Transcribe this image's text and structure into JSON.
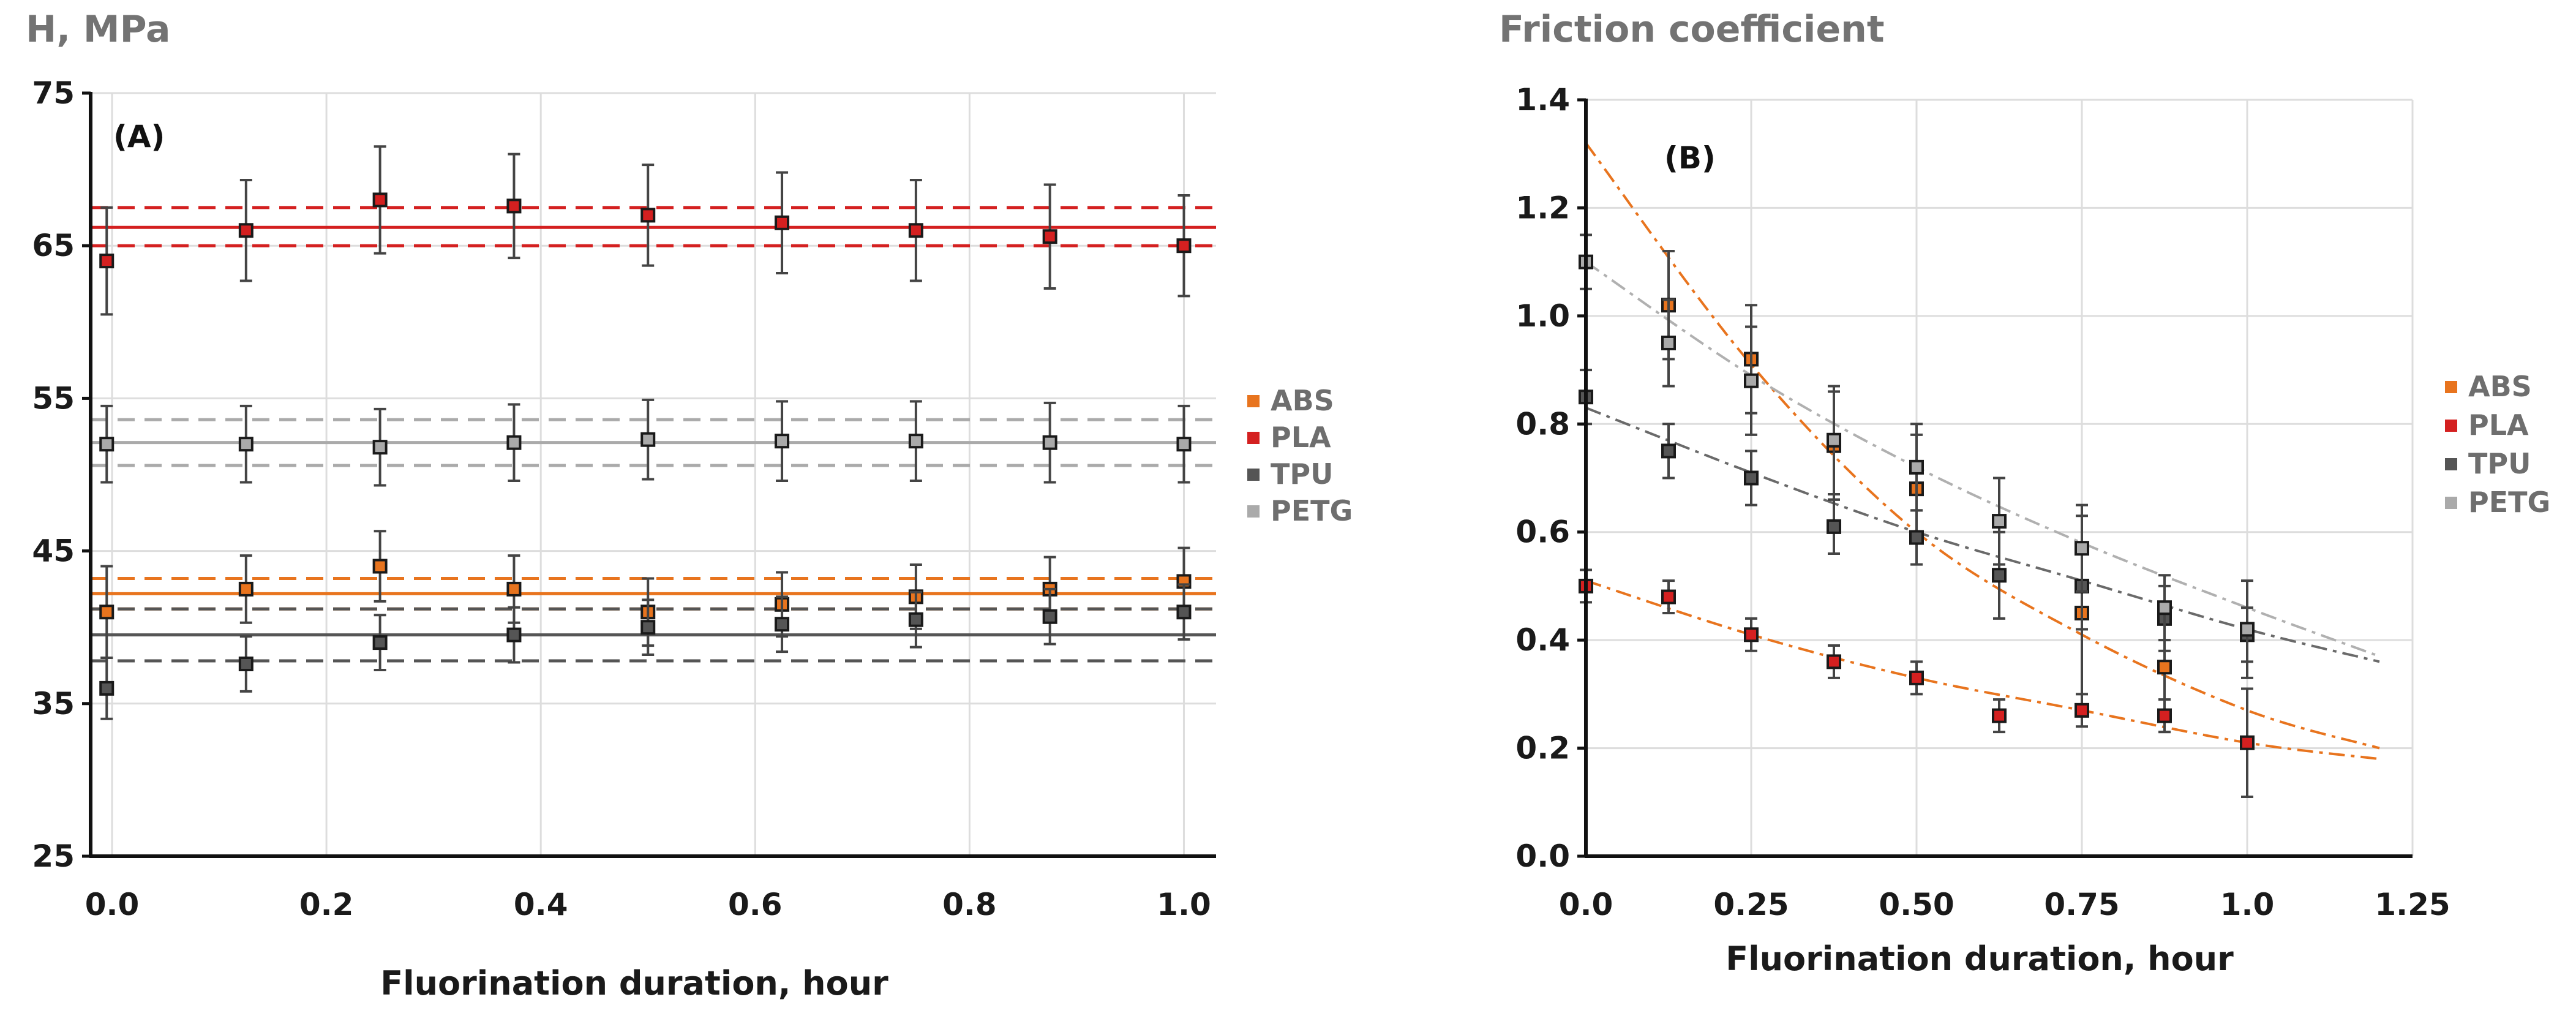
{
  "chart_data": [
    {
      "type": "scatter",
      "panel_label": "(A)",
      "ylabel": "H, MPa",
      "xlabel": "Fluorination duration, hour",
      "xlim": [
        -0.02,
        1.03
      ],
      "ylim": [
        25,
        75
      ],
      "xticks": [
        0.0,
        0.2,
        0.4,
        0.6,
        0.8,
        1.0
      ],
      "xtick_labels": [
        "0.0",
        "0.2",
        "0.4",
        "0.6",
        "0.8",
        "1.0"
      ],
      "yticks": [
        25,
        35,
        45,
        55,
        65,
        75
      ],
      "ytick_labels": [
        "25",
        "35",
        "45",
        "55",
        "65",
        "75"
      ],
      "grid": true,
      "legend_position": "right",
      "legend": [
        "ABS",
        "PLA",
        "TPU",
        "PETG"
      ],
      "x": [
        -0.005,
        0.125,
        0.25,
        0.375,
        0.5,
        0.625,
        0.75,
        0.875,
        1.0
      ],
      "series": [
        {
          "name": "ABS",
          "color": "#e8741e",
          "values": [
            41,
            42.5,
            44,
            42.5,
            41,
            41.5,
            42,
            42.5,
            43
          ],
          "err": [
            3,
            2.2,
            2.3,
            2.2,
            2.2,
            2.1,
            2.1,
            2.1,
            2.2
          ],
          "mean": 42.2,
          "band": [
            41.2,
            43.2
          ]
        },
        {
          "name": "PLA",
          "color": "#d42020",
          "values": [
            64,
            66,
            68,
            67.6,
            67,
            66.5,
            66,
            65.6,
            65
          ],
          "err": [
            3.5,
            3.3,
            3.5,
            3.4,
            3.3,
            3.3,
            3.3,
            3.4,
            3.3
          ],
          "mean": 66.2,
          "band": [
            65,
            67.5
          ]
        },
        {
          "name": "TPU",
          "color": "#555555",
          "values": [
            36,
            37.6,
            39,
            39.5,
            40,
            40.2,
            40.5,
            40.7,
            41
          ],
          "err": [
            2,
            1.8,
            1.8,
            1.8,
            1.8,
            1.8,
            1.8,
            1.8,
            1.8
          ],
          "mean": 39.5,
          "band": [
            37.8,
            41.2
          ]
        },
        {
          "name": "PETG",
          "color": "#aaaaaa",
          "values": [
            52,
            52,
            51.8,
            52.1,
            52.3,
            52.2,
            52.2,
            52.1,
            52
          ],
          "err": [
            2.5,
            2.5,
            2.5,
            2.5,
            2.6,
            2.6,
            2.6,
            2.6,
            2.5
          ],
          "mean": 52.1,
          "band": [
            50.6,
            53.6
          ]
        }
      ]
    },
    {
      "type": "scatter",
      "panel_label": "(B)",
      "ylabel": "Friction coefficient",
      "xlabel": "Fluorination duration, hour",
      "xlim": [
        0,
        1.25
      ],
      "ylim": [
        0,
        1.4
      ],
      "xticks": [
        0,
        0.25,
        0.5,
        0.75,
        1.0,
        1.25
      ],
      "xtick_labels": [
        "0.0",
        "0.25",
        "0.50",
        "0.75",
        "1.0",
        "1.25"
      ],
      "yticks": [
        0,
        0.2,
        0.4,
        0.6,
        0.8,
        1.0,
        1.2,
        1.4
      ],
      "ytick_labels": [
        "0.0",
        "0.2",
        "0.4",
        "0.6",
        "0.8",
        "1.0",
        "1.2",
        "1.4"
      ],
      "grid": true,
      "legend_position": "right",
      "legend": [
        "ABS",
        "PLA",
        "TPU",
        "PETG"
      ],
      "series": [
        {
          "name": "ABS",
          "color": "#e8741e",
          "x": [
            0.125,
            0.25,
            0.375,
            0.5,
            0.75,
            0.875
          ],
          "values": [
            1.02,
            0.92,
            0.76,
            0.68,
            0.45,
            0.35
          ],
          "err": [
            0.1,
            0.1,
            0.1,
            0.1,
            0.18,
            0.12
          ]
        },
        {
          "name": "PLA",
          "color": "#d42020",
          "x": [
            0.0,
            0.125,
            0.25,
            0.375,
            0.5,
            0.625,
            0.75,
            0.875,
            1.0
          ],
          "values": [
            0.5,
            0.48,
            0.41,
            0.36,
            0.33,
            0.26,
            0.27,
            0.26,
            0.21
          ],
          "err": [
            0.03,
            0.03,
            0.03,
            0.03,
            0.03,
            0.03,
            0.03,
            0.03,
            0.1
          ]
        },
        {
          "name": "TPU",
          "color": "#555555",
          "x": [
            0.0,
            0.125,
            0.25,
            0.375,
            0.5,
            0.625,
            0.75,
            0.875,
            1.0
          ],
          "values": [
            0.85,
            0.75,
            0.7,
            0.61,
            0.59,
            0.52,
            0.5,
            0.44,
            0.41
          ],
          "err": [
            0.05,
            0.05,
            0.05,
            0.05,
            0.05,
            0.08,
            0.08,
            0.06,
            0.05
          ]
        },
        {
          "name": "PETG",
          "color": "#aaaaaa",
          "x": [
            0.0,
            0.125,
            0.25,
            0.375,
            0.5,
            0.625,
            0.75,
            0.875,
            1.0
          ],
          "values": [
            1.1,
            0.95,
            0.88,
            0.77,
            0.72,
            0.62,
            0.57,
            0.46,
            0.42
          ],
          "err": [
            0.05,
            0.08,
            0.1,
            0.1,
            0.08,
            0.08,
            0.08,
            0.06,
            0.09
          ]
        }
      ],
      "trendlines": [
        {
          "color": "#e8741e",
          "x": [
            0.0,
            0.25,
            0.5,
            0.75,
            1.0,
            1.2
          ],
          "values": [
            1.32,
            0.91,
            0.6,
            0.41,
            0.27,
            0.2
          ]
        },
        {
          "color": "#e8741e",
          "x": [
            0.0,
            0.25,
            0.5,
            0.75,
            1.0,
            1.2
          ],
          "values": [
            0.51,
            0.41,
            0.33,
            0.27,
            0.21,
            0.18
          ]
        },
        {
          "color": "#6a6a6a",
          "x": [
            0.0,
            0.25,
            0.5,
            0.75,
            1.0,
            1.2
          ],
          "values": [
            0.83,
            0.71,
            0.6,
            0.51,
            0.42,
            0.36
          ]
        },
        {
          "color": "#b0b0b0",
          "x": [
            0.0,
            0.25,
            0.5,
            0.75,
            1.0,
            1.2
          ],
          "values": [
            1.1,
            0.89,
            0.72,
            0.58,
            0.46,
            0.37
          ]
        }
      ]
    }
  ]
}
